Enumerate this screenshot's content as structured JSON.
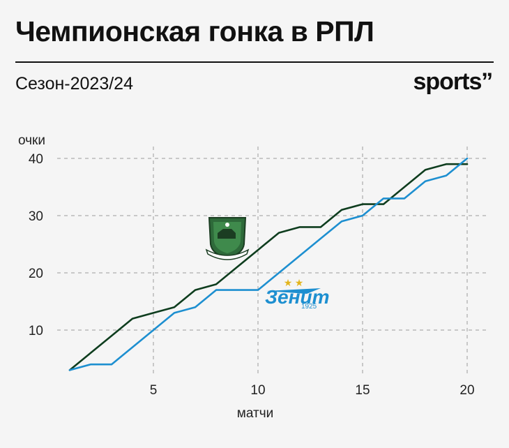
{
  "header": {
    "title": "Чемпионская гонка в РПЛ",
    "subtitle": "Сезон-2023/24",
    "brand": "sports’’"
  },
  "logos": {
    "krasnodar": {
      "icon": "krasnodar-crest-icon",
      "color": "#2e6a3a"
    },
    "zenit": {
      "icon": "zenit-logo-icon",
      "text": "Зенит",
      "year": "1925",
      "color": "#1d8fd0",
      "star_color": "#e3b51c"
    }
  },
  "chart_data": {
    "type": "line",
    "xlabel": "матчи",
    "ylabel": "очки",
    "xlim": [
      0.5,
      21
    ],
    "ylim": [
      0,
      43
    ],
    "x_ticks": [
      5,
      10,
      15,
      20
    ],
    "y_ticks": [
      10,
      20,
      30,
      40
    ],
    "grid": true,
    "grid_style": "dashed",
    "legend": "logos on chart",
    "x": [
      1,
      2,
      3,
      4,
      5,
      6,
      7,
      8,
      9,
      10,
      11,
      12,
      13,
      14,
      15,
      16,
      17,
      18,
      19,
      20
    ],
    "series": [
      {
        "color": "#0e3d1e",
        "values": [
          3,
          6,
          9,
          12,
          13,
          14,
          17,
          18,
          21,
          24,
          27,
          28,
          28,
          31,
          32,
          32,
          35,
          38,
          39,
          39
        ]
      },
      {
        "color": "#1d8fd0",
        "values": [
          3,
          4,
          4,
          7,
          10,
          13,
          14,
          17,
          17,
          17,
          20,
          23,
          26,
          29,
          30,
          33,
          33,
          36,
          37,
          40
        ]
      }
    ]
  }
}
